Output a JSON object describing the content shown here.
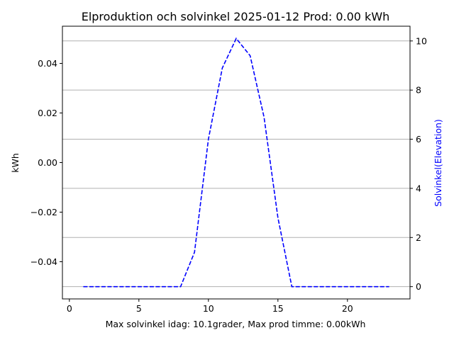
{
  "chart_data": {
    "type": "line",
    "title": "Elproduktion och solvinkel 2025-01-12 Prod: 0.00 kWh",
    "xlabel": "Max solvinkel idag: 10.1grader, Max prod timme: 0.00kWh",
    "ylabel_left": "kWh",
    "ylabel_right": "Solvinkel(Elevation)",
    "xlim": [
      -0.5,
      24.5
    ],
    "ylim_left": [
      -0.055,
      0.055
    ],
    "ylim_right": [
      -0.5,
      10.6
    ],
    "x_ticks": [
      0,
      5,
      10,
      15,
      20
    ],
    "x_tick_labels": [
      "0",
      "5",
      "10",
      "15",
      "20"
    ],
    "y_left_ticks": [
      -0.04,
      -0.02,
      0.0,
      0.02,
      0.04
    ],
    "y_left_tick_labels": [
      "−0.04",
      "−0.02",
      "0.00",
      "0.02",
      "0.04"
    ],
    "y_right_ticks": [
      0,
      2,
      4,
      6,
      8,
      10
    ],
    "y_right_tick_labels": [
      "0",
      "2",
      "4",
      "6",
      "8",
      "10"
    ],
    "grid": "horizontal (right axis)",
    "series": [
      {
        "axis": "right",
        "color": "#0000ff",
        "style": "dashed",
        "x": [
          1,
          2,
          3,
          4,
          5,
          6,
          7,
          8,
          9,
          10,
          11,
          12,
          13,
          14,
          15,
          16,
          17,
          18,
          19,
          20,
          21,
          22,
          23
        ],
        "values": [
          0,
          0,
          0,
          0,
          0,
          0,
          0,
          0,
          1.4,
          6.0,
          8.9,
          10.1,
          9.4,
          6.9,
          2.8,
          0,
          0,
          0,
          0,
          0,
          0,
          0,
          0
        ]
      }
    ],
    "colors": {
      "axis": "#000000",
      "right_axis_label": "#0000ff",
      "grid": "#b0b0b0"
    }
  }
}
